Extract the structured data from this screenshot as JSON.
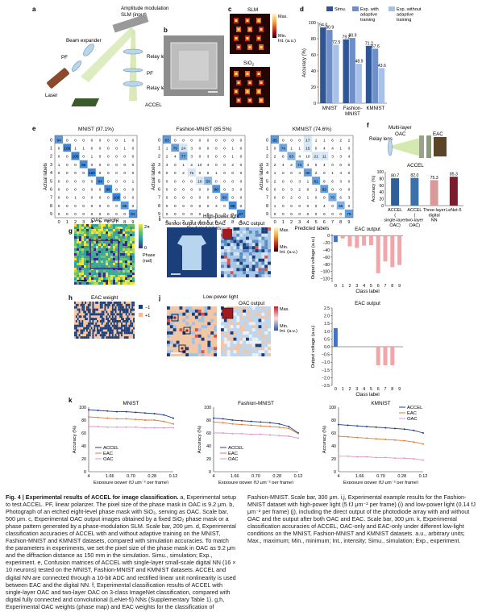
{
  "panels": {
    "a": {
      "letter": "a",
      "title": "Amplitude modulation",
      "slm": "SLM (input)",
      "beam": "Beam expander",
      "pf1": "PF",
      "pf2": "PF",
      "relay1": "Relay lens",
      "relay2": "Relay lens",
      "laser": "Laser",
      "accel": "ACCEL"
    },
    "b": {
      "letter": "b"
    },
    "c": {
      "letter": "c",
      "slm": "SLM",
      "sio2": "SiO",
      "sio2_sub": "2",
      "scale_max": "Max.",
      "scale_min": "Min.",
      "scale_unit": "Int. (a.u.)"
    },
    "d": {
      "letter": "d"
    },
    "e": {
      "letter": "e",
      "ylabel": "Actual labels",
      "xlabel": "Predicted labels"
    },
    "f": {
      "letter": "f",
      "multilayer": "Multi-layer",
      "oac": "OAC",
      "eac": "EAC",
      "relay": "Relay lens",
      "accel": "ACCEL"
    },
    "g": {
      "letter": "g",
      "title": "OAC weight",
      "cb_top": "2π",
      "cb_bottom": "0",
      "cb_label1": "Phase",
      "cb_label2": "(rad)"
    },
    "h": {
      "letter": "h",
      "title": "EAC weight",
      "cb_top": "−1",
      "cb_bottom": "+1"
    },
    "i": {
      "letter": "i",
      "left_title": "Sensor output without OAC",
      "light": "High-power light",
      "right_title": "OAC output",
      "cb_max": "Max.",
      "cb_min": "Min.",
      "cb_unit": "Int. (a.u.)"
    },
    "j": {
      "letter": "j",
      "light": "Low-power light",
      "right_title": "OAC output",
      "cb_max": "Max.",
      "cb_min": "Min.",
      "cb_unit": "Int. (a.u.)"
    },
    "k": {
      "letter": "k"
    }
  },
  "chart_data": [
    {
      "id": "d",
      "type": "bar",
      "categories": [
        "MNIST",
        "Fashion-MNIST",
        "KMNIST"
      ],
      "series": [
        {
          "name": "Simu.",
          "values": [
            94.0,
            79.2,
            71.2
          ],
          "color": "#2f5597"
        },
        {
          "name": "Exp. with adaptive training",
          "values": [
            90.9,
            80.9,
            67.6
          ],
          "color": "#6f8fc9"
        },
        {
          "name": "Exp. without adaptive training",
          "values": [
            72.5,
            48.9,
            43.6
          ],
          "color": "#a9c1e8"
        }
      ],
      "ylabel": "Accuracy (%)",
      "ylim": [
        0,
        100
      ],
      "yticks": [
        0,
        20,
        40,
        60,
        80,
        100
      ]
    },
    {
      "id": "e1",
      "type": "heatmap",
      "title": "MNIST (97.1%)",
      "matrix": [
        [
          84,
          0,
          0,
          0,
          0,
          0,
          0,
          0,
          1,
          0
        ],
        [
          0,
          100,
          1,
          1,
          0,
          0,
          0,
          0,
          1,
          0
        ],
        [
          0,
          0,
          100,
          0,
          1,
          0,
          0,
          0,
          0,
          0
        ],
        [
          1,
          0,
          0,
          95,
          0,
          0,
          0,
          0,
          0,
          0
        ],
        [
          0,
          0,
          0,
          0,
          100,
          0,
          0,
          0,
          0,
          0
        ],
        [
          0,
          0,
          0,
          0,
          0,
          94,
          0,
          0,
          0,
          1
        ],
        [
          0,
          0,
          0,
          0,
          0,
          0,
          98,
          0,
          0,
          0
        ],
        [
          0,
          0,
          1,
          0,
          0,
          0,
          0,
          100,
          0,
          0
        ],
        [
          0,
          0,
          0,
          0,
          0,
          0,
          0,
          0,
          85,
          0
        ],
        [
          0,
          0,
          0,
          0,
          0,
          0,
          0,
          0,
          0,
          91
        ]
      ]
    },
    {
      "id": "e2",
      "type": "heatmap",
      "title": "Fashion-MNIST (85.5%)",
      "matrix": [
        [
          83,
          0,
          0,
          0,
          0,
          0,
          0,
          0,
          0,
          0
        ],
        [
          1,
          79,
          24,
          3,
          0,
          0,
          0,
          0,
          1,
          0
        ],
        [
          2,
          4,
          77,
          3,
          0,
          3,
          0,
          0,
          1,
          0
        ],
        [
          3,
          0,
          1,
          2,
          10,
          4,
          0,
          0,
          2,
          0
        ],
        [
          0,
          0,
          2,
          72,
          0,
          6,
          1,
          0,
          0,
          0
        ],
        [
          0,
          0,
          0,
          0,
          16,
          59,
          0,
          0,
          0,
          0
        ],
        [
          0,
          0,
          0,
          0,
          0,
          0,
          90,
          0,
          3,
          0
        ],
        [
          0,
          0,
          0,
          0,
          0,
          0,
          0,
          80,
          0,
          0
        ],
        [
          0,
          0,
          0,
          0,
          0,
          0,
          3,
          0,
          98,
          0
        ],
        [
          0,
          0,
          0,
          0,
          0,
          0,
          0,
          0,
          0,
          97
        ]
      ]
    },
    {
      "id": "e3",
      "type": "heatmap",
      "title": "KMNIST (74.6%)",
      "matrix": [
        [
          85,
          0,
          0,
          0,
          17,
          1,
          1,
          6,
          2,
          2
        ],
        [
          0,
          74,
          1,
          1,
          15,
          0,
          4,
          4,
          1,
          0
        ],
        [
          2,
          6,
          63,
          4,
          10,
          21,
          11,
          3,
          3,
          4
        ],
        [
          2,
          4,
          2,
          74,
          4,
          6,
          4,
          0,
          0,
          0
        ],
        [
          1,
          0,
          0,
          4,
          80,
          2,
          0,
          1,
          4,
          0
        ],
        [
          2,
          0,
          0,
          3,
          1,
          81,
          8,
          6,
          3,
          0
        ],
        [
          0,
          0,
          3,
          2,
          6,
          1,
          82,
          0,
          0,
          0
        ],
        [
          0,
          0,
          2,
          0,
          1,
          0,
          0,
          70,
          6,
          3
        ],
        [
          1,
          0,
          0,
          0,
          0,
          0,
          4,
          0,
          65,
          0
        ],
        [
          0,
          0,
          0,
          0,
          0,
          0,
          0,
          0,
          0,
          79
        ]
      ]
    },
    {
      "id": "f",
      "type": "bar",
      "categories": [
        "ACCEL (single-layer OAC)",
        "ACCEL (two-layer OAC)",
        "Three-layer digital NN",
        "LeNet-5"
      ],
      "values": [
        80.7,
        82.0,
        75.3,
        85.3
      ],
      "colors": [
        "#2e5f98",
        "#3d6fa8",
        "#d99a9a",
        "#7a1d2e"
      ],
      "ylabel": "Accuracy (%)",
      "ylim": [
        0,
        100
      ],
      "yticks": [
        0,
        20,
        40,
        60,
        80,
        100
      ]
    },
    {
      "id": "i",
      "type": "bar",
      "title": "EAC output",
      "xlabel": "Class label",
      "ylabel": "Output voltage (a.u.)",
      "categories": [
        "0",
        "1",
        "2",
        "3",
        "4",
        "5",
        "6",
        "7",
        "8",
        "9"
      ],
      "values": [
        -18,
        -8,
        -30,
        -34,
        -28,
        -27,
        -105,
        -72,
        -88,
        -82
      ],
      "colors": [
        "#4472c4",
        "#f4a5aa"
      ],
      "ylim": [
        -130,
        5
      ],
      "yticks": [
        0,
        -20,
        -40,
        -60,
        -80,
        -100,
        -120
      ]
    },
    {
      "id": "j",
      "type": "bar",
      "title": "EAC output",
      "xlabel": "Class label",
      "ylabel": "Output voltage (a.u.)",
      "categories": [
        "0",
        "1",
        "2",
        "3",
        "4",
        "5",
        "6",
        "7",
        "8",
        "9"
      ],
      "values": [
        1.2,
        0,
        0,
        0,
        0,
        0,
        -1.2,
        -1.2,
        -1.2,
        0
      ],
      "colors": [
        "#4472c4",
        "#f4a5aa"
      ],
      "ylim": [
        -2.5,
        2.5
      ],
      "yticks": [
        2.5,
        2.0,
        1.5,
        1.0,
        0.5,
        0,
        -0.5,
        -1.0,
        -1.5,
        -2.0,
        -2.5
      ]
    },
    {
      "id": "k1",
      "type": "line",
      "title": "MNIST",
      "xlabel": "Exposure power (fJ μm⁻² per frame)",
      "ylabel": "Accuracy (%)",
      "xticks": [
        "4",
        "1.66",
        "0.70",
        "0.28",
        "0.12"
      ],
      "ylim": [
        0,
        100
      ],
      "yticks": [
        0,
        20,
        40,
        60,
        80,
        100
      ],
      "series": [
        {
          "name": "ACCEL",
          "color": "#1f3c88",
          "values": [
            96,
            95,
            94,
            93,
            93,
            92,
            91,
            90,
            88,
            83
          ]
        },
        {
          "name": "EAC",
          "color": "#e07b39",
          "values": [
            85,
            84,
            83,
            82,
            82,
            81,
            80,
            80,
            78,
            74
          ]
        },
        {
          "name": "OAC",
          "color": "#e096c8",
          "values": [
            70,
            70,
            69,
            69,
            69,
            69,
            68,
            68,
            68,
            68
          ]
        }
      ]
    },
    {
      "id": "k2",
      "type": "line",
      "title": "Fashion-MNIST",
      "xlabel": "Exposure power (fJ μm⁻² per frame)",
      "ylabel": "Accuracy (%)",
      "xticks": [
        "4",
        "1.66",
        "0.70",
        "0.28",
        "0.12"
      ],
      "ylim": [
        0,
        100
      ],
      "yticks": [
        0,
        20,
        40,
        60,
        80,
        100
      ],
      "series": [
        {
          "name": "ACCEL",
          "color": "#1f3c88",
          "values": [
            83,
            82,
            80,
            79,
            78,
            77,
            76,
            74,
            70,
            60
          ]
        },
        {
          "name": "EAC",
          "color": "#e07b39",
          "values": [
            77,
            76,
            74,
            73,
            72,
            71,
            70,
            69,
            67,
            59
          ]
        },
        {
          "name": "OAC",
          "color": "#e096c8",
          "values": [
            60,
            60,
            59,
            59,
            58,
            58,
            57,
            56,
            55,
            52
          ]
        }
      ]
    },
    {
      "id": "k3",
      "type": "line",
      "title": "KMNIST",
      "xlabel": "Exposure power (fJ μm⁻² per frame)",
      "ylabel": "Accuracy (%)",
      "xticks": [
        "4",
        "1.66",
        "0.70",
        "0.28",
        "0.12"
      ],
      "ylim": [
        0,
        100
      ],
      "yticks": [
        0,
        20,
        40,
        60,
        80,
        100
      ],
      "series": [
        {
          "name": "ACCEL",
          "color": "#1f3c88",
          "values": [
            73,
            72,
            71,
            70,
            69,
            68,
            67,
            66,
            64,
            60
          ]
        },
        {
          "name": "EAC",
          "color": "#e07b39",
          "values": [
            55,
            54,
            53,
            52,
            51,
            50,
            49,
            48,
            46,
            43
          ]
        },
        {
          "name": "OAC",
          "color": "#e096c8",
          "values": [
            24,
            24,
            23,
            23,
            22,
            22,
            21,
            21,
            20,
            18
          ]
        }
      ]
    }
  ],
  "caption": {
    "lead": "Fig. 4 | Experimental results of ACCEL for image classification.",
    "body1": " a, Experimental setup to test ACCEL. PF, linear polarizer. The pixel size of the phase mask in OAC is 9.2 μm. b, Photograph of an etched eight-level phase mask with SiO₂, serving as OAC. Scale bar, 500 μm. c, Experimental OAC output images obtained by a fixed SiO₂ phase mask or a phase pattern generated by a phase-modulation SLM. Scale bar, 200 μm. d, Experimental classification accuracies of ACCEL with and without adaptive training on the MNIST, Fashion-MNIST and KMNIST datasets, compared with simulation accuracies. To match the parameters in experiments, we set the pixel size of the phase mask in OAC as 9.2 μm and the diffraction distance as 150 mm in the simulation. Simu., simulation; Exp., experiment. e, Confusion matrices of ACCEL with single-layer small-scale digital NN (16 × 10 neurons) tested on the MNIST, Fashion-MNIST and KMNIST datasets. ACCEL and digital NN are connected through a 10-bit ",
    "body2": "ADC and rectified linear unit nonlinearity is used between EAC and the digital NN. f, Experimental classification results of ACCEL with single-layer OAC and two-layer OAC on 3-class ImageNet classification, compared with digital fully connected and convolutional (LeNet-5) NNs (Supplementary Table 1). g,h, Experimental OAC weights (phase map) and EAC weights for the classification of Fashion-MNIST. Scale bar, 300 μm. i,j, Experimental example results for the Fashion-MNIST dataset with high-power light (5 fJ μm⁻² per frame) (i) and low-power light (0.14 fJ μm⁻² per frame) (j), including the direct output of the photodiode array with and without OAC and the output after both OAC and EAC. Scale bar, 300 μm. k, Experimental classification accuracies of ACCEL, OAC-only and EAC-only under different low-light conditions on the MNIST, Fashion-MNIST and KMNIST datasets. a.u., arbitrary units; Max., maximum; Min., minimum; Int., intensity; Simu., simulation; Exp., experiment."
  }
}
